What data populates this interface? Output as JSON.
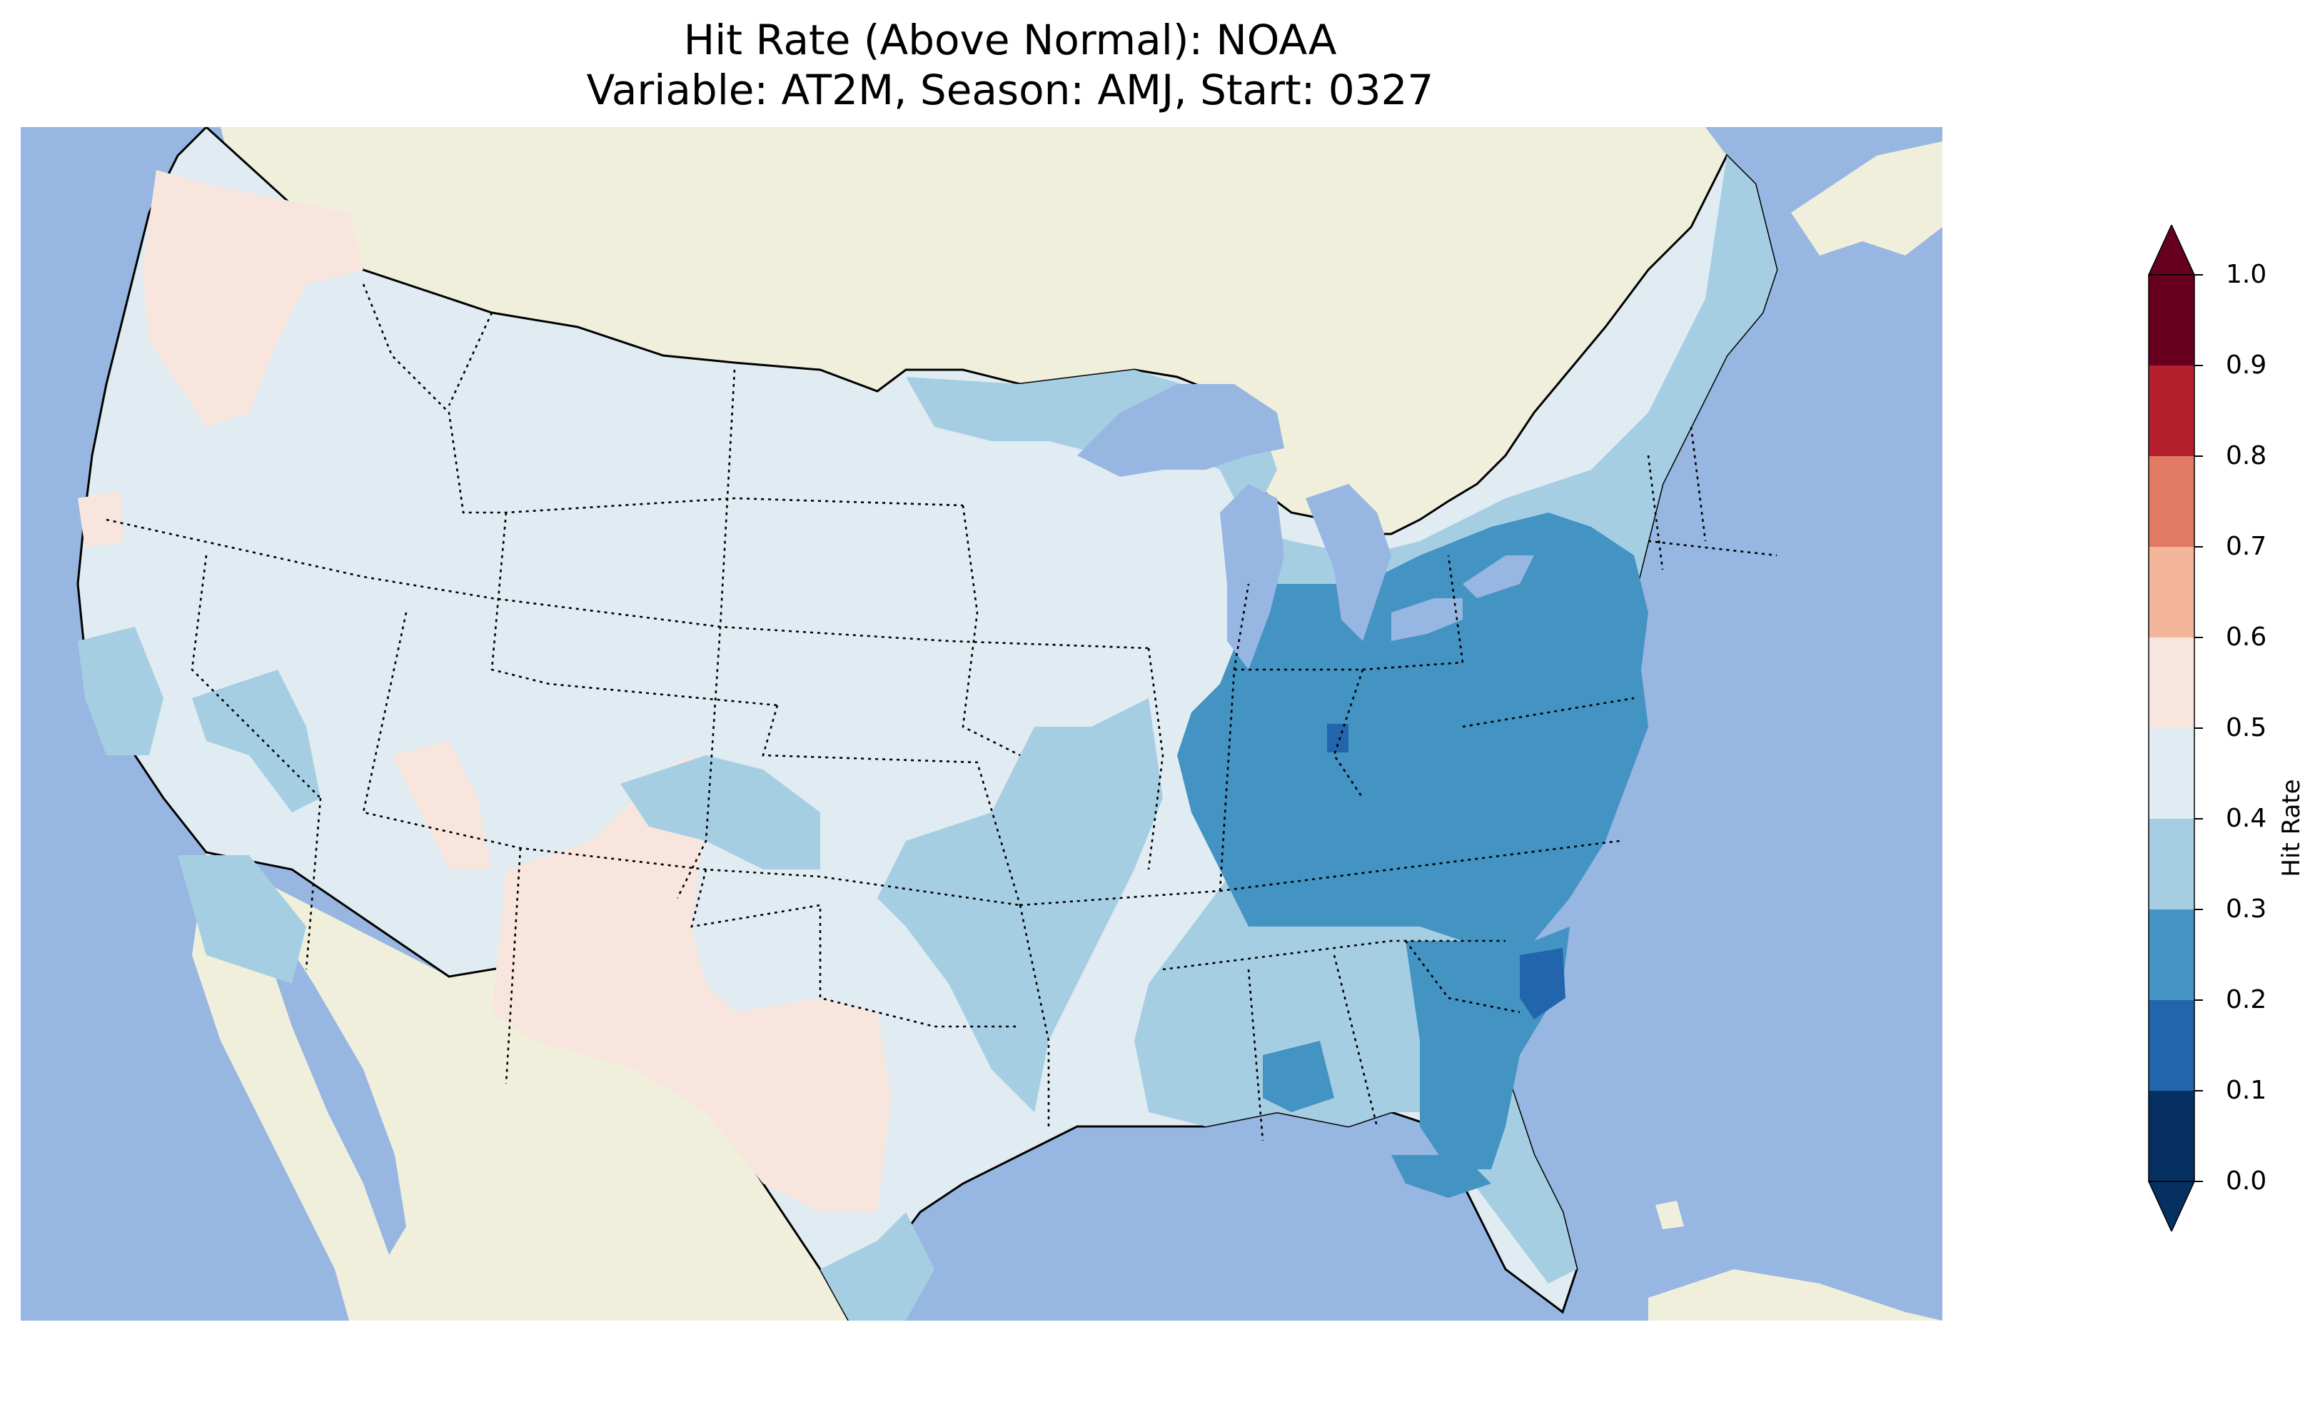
{
  "title": {
    "line1": "Hit Rate (Above Normal): NOAA",
    "line2": "Variable: AT2M, Season: AMJ, Start: 0327"
  },
  "colorbar": {
    "label": "Hit Rate",
    "ticks": [
      "0.0",
      "0.1",
      "0.2",
      "0.3",
      "0.4",
      "0.5",
      "0.6",
      "0.7",
      "0.8",
      "0.9",
      "1.0"
    ],
    "bins": [
      {
        "range": [
          0.0,
          0.1
        ],
        "color": "#053061"
      },
      {
        "range": [
          0.1,
          0.2
        ],
        "color": "#2166ac"
      },
      {
        "range": [
          0.2,
          0.3
        ],
        "color": "#4393c3"
      },
      {
        "range": [
          0.3,
          0.4
        ],
        "color": "#a6cee3"
      },
      {
        "range": [
          0.4,
          0.5
        ],
        "color": "#e0ebf2"
      },
      {
        "range": [
          0.5,
          0.6
        ],
        "color": "#f8e6de"
      },
      {
        "range": [
          0.6,
          0.7
        ],
        "color": "#f4b69a"
      },
      {
        "range": [
          0.7,
          0.8
        ],
        "color": "#e07a62"
      },
      {
        "range": [
          0.8,
          0.9
        ],
        "color": "#b5202e"
      },
      {
        "range": [
          0.9,
          1.0
        ],
        "color": "#67001f"
      }
    ],
    "extend": "both"
  },
  "map": {
    "ocean_color": "#97b6e1",
    "land_color": "#efefdb",
    "regions": [
      {
        "name": "Pacific Northwest coast",
        "hit_rate": 0.55
      },
      {
        "name": "Southwest / New Mexico / West Texas",
        "hit_rate": 0.55
      },
      {
        "name": "Interior West and Northern Plains",
        "hit_rate": 0.45
      },
      {
        "name": "Upper Midwest and Southern Plains",
        "hit_rate": 0.35
      },
      {
        "name": "Ohio Valley, Appalachians and Mid-Atlantic",
        "hit_rate": 0.25
      },
      {
        "name": "Coastal South Carolina",
        "hit_rate": 0.15
      },
      {
        "name": "Florida peninsula",
        "hit_rate": 0.35
      },
      {
        "name": "New England",
        "hit_rate": 0.35
      }
    ]
  }
}
